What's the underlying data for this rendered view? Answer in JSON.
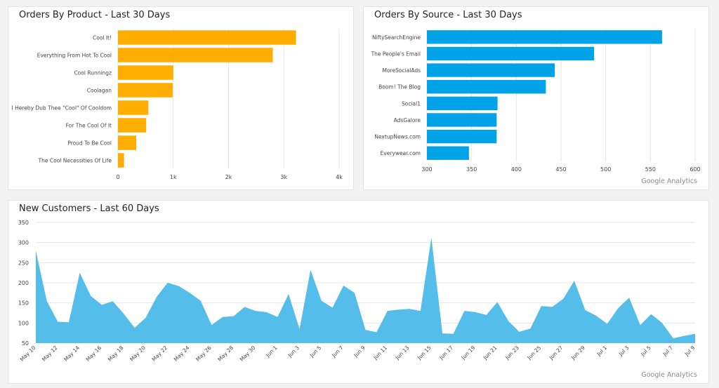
{
  "panels": {
    "product": {
      "title": "Orders By Product - Last 30 Days"
    },
    "source": {
      "title": "Orders By Source - Last 30 Days",
      "footer": "Google Analytics"
    },
    "customers": {
      "title": "New Customers - Last 60 Days",
      "footer": "Google Analytics"
    }
  },
  "colors": {
    "product_bar": "#ffad00",
    "source_bar": "#00a3e8",
    "area_fill": "#55bdea",
    "grid": "#e6e6e6"
  },
  "chart_data": [
    {
      "type": "bar",
      "orientation": "horizontal",
      "title": "Orders By Product - Last 30 Days",
      "categories": [
        "Cool It!",
        "Everything From Hot To Cool",
        "Cool Runningz",
        "Coolagan",
        "I Hereby Dub Thee \"Cool\" Of Cooldom",
        "For The Cool Of It",
        "Proud To Be Cool",
        "The Cool Necessities Of Life"
      ],
      "values": [
        3220,
        2800,
        1000,
        990,
        550,
        510,
        330,
        110
      ],
      "xlim": [
        0,
        4000
      ],
      "xticks": [
        0,
        1000,
        2000,
        3000,
        4000
      ],
      "xtick_labels": [
        "0",
        "1k",
        "2k",
        "3k",
        "4k"
      ],
      "grid": true
    },
    {
      "type": "bar",
      "orientation": "horizontal",
      "title": "Orders By Source - Last 30 Days",
      "categories": [
        "NiftySearchEngine",
        "The People's Email",
        "MoreSocialAds",
        "Boom! The Blog",
        "Social1",
        "AdsGalore",
        "NextupNews.com",
        "Everywear.com"
      ],
      "values": [
        563,
        487,
        443,
        433,
        379,
        378,
        378,
        347
      ],
      "xlim": [
        300,
        600
      ],
      "xticks": [
        300,
        350,
        400,
        450,
        500,
        550,
        600
      ],
      "grid": true
    },
    {
      "type": "area",
      "title": "New Customers - Last 60 Days",
      "x": [
        "May 10",
        "May 11",
        "May 12",
        "May 13",
        "May 14",
        "May 15",
        "May 16",
        "May 17",
        "May 18",
        "May 19",
        "May 20",
        "May 21",
        "May 22",
        "May 23",
        "May 24",
        "May 25",
        "May 26",
        "May 27",
        "May 28",
        "May 29",
        "May 30",
        "May 31",
        "Jun 1",
        "Jun 2",
        "Jun 3",
        "Jun 4",
        "Jun 5",
        "Jun 6",
        "Jun 7",
        "Jun 8",
        "Jun 9",
        "Jun 10",
        "Jun 11",
        "Jun 12",
        "Jun 13",
        "Jun 14",
        "Jun 15",
        "Jun 16",
        "Jun 17",
        "Jun 18",
        "Jun 19",
        "Jun 20",
        "Jun 21",
        "Jun 22",
        "Jun 23",
        "Jun 24",
        "Jun 25",
        "Jun 26",
        "Jun 27",
        "Jun 28",
        "Jun 29",
        "Jun 30",
        "Jul 1",
        "Jul 2",
        "Jul 3",
        "Jul 4",
        "Jul 5",
        "Jul 6",
        "Jul 7",
        "Jul 8",
        "Jul 9"
      ],
      "values": [
        280,
        155,
        103,
        102,
        225,
        167,
        145,
        154,
        123,
        88,
        113,
        165,
        200,
        192,
        175,
        155,
        95,
        115,
        117,
        140,
        130,
        127,
        115,
        172,
        85,
        232,
        155,
        138,
        193,
        175,
        83,
        77,
        130,
        133,
        135,
        130,
        312,
        74,
        73,
        130,
        127,
        120,
        152,
        105,
        78,
        86,
        142,
        140,
        160,
        205,
        132,
        118,
        98,
        137,
        163,
        95,
        122,
        100,
        62,
        68,
        73
      ],
      "xticks": [
        "May 10",
        "May 12",
        "May 14",
        "May 16",
        "May 18",
        "May 20",
        "May 22",
        "May 24",
        "May 26",
        "May 28",
        "May 30",
        "Jun 1",
        "Jun 3",
        "Jun 5",
        "Jun 7",
        "Jun 9",
        "Jun 11",
        "Jun 13",
        "Jun 15",
        "Jun 17",
        "Jun 19",
        "Jun 21",
        "Jun 23",
        "Jun 25",
        "Jun 27",
        "Jun 29",
        "Jul 1",
        "Jul 3",
        "Jul 5",
        "Jul 7",
        "Jul 9"
      ],
      "ylim": [
        50,
        350
      ],
      "yticks": [
        50,
        100,
        150,
        200,
        250,
        300,
        350
      ],
      "grid": true
    }
  ]
}
